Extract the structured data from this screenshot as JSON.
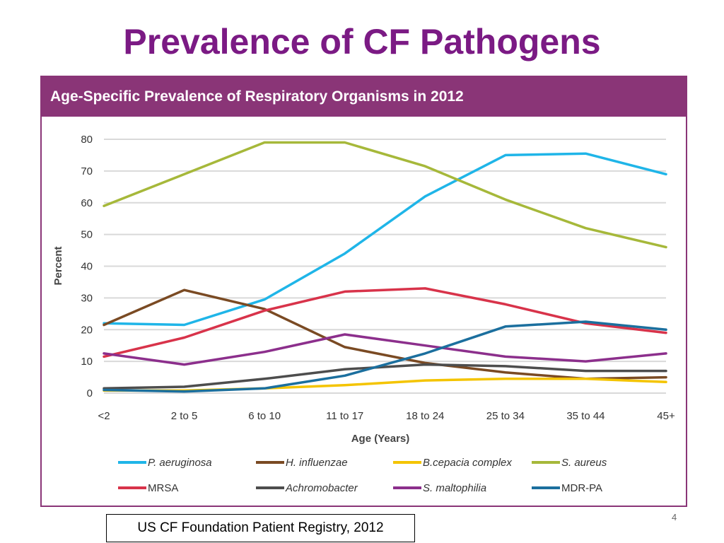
{
  "slide": {
    "title": "Prevalence of CF Pathogens",
    "source": "US CF Foundation Patient Registry, 2012",
    "page_number": "4"
  },
  "colors": {
    "title": "#7b1a84",
    "header_bg": "#8a3577",
    "panel_border": "#8a3577",
    "grid": "#d9d9d9"
  },
  "chart_data": {
    "type": "line",
    "title": "Age-Specific Prevalence of Respiratory Organisms in 2012",
    "xlabel": "Age (Years)",
    "ylabel": "Percent",
    "ylim": [
      0,
      80
    ],
    "yticks": [
      0,
      10,
      20,
      30,
      40,
      50,
      60,
      70,
      80
    ],
    "grid": true,
    "legend_position": "bottom",
    "categories": [
      "<2",
      "2 to 5",
      "6 to 10",
      "11 to 17",
      "18 to 24",
      "25 to 34",
      "35 to 44",
      "45+"
    ],
    "series": [
      {
        "name": "P. aeruginosa",
        "color": "#1fb5e8",
        "values": [
          22,
          21.5,
          29.5,
          44,
          62,
          75,
          75.5,
          69
        ]
      },
      {
        "name": "H. influenzae",
        "color": "#7a4a23",
        "values": [
          21.5,
          32.5,
          26.5,
          14.5,
          9.5,
          6.5,
          4.5,
          5
        ]
      },
      {
        "name": "B.cepacia complex",
        "color": "#f4c400",
        "values": [
          0.8,
          0.8,
          1.5,
          2.5,
          4,
          4.5,
          4.5,
          3.5
        ]
      },
      {
        "name": "S. aureus",
        "color": "#a6b83a",
        "values": [
          59,
          69,
          79,
          79,
          71.5,
          61,
          52,
          46
        ]
      },
      {
        "name": "MRSA",
        "color": "#d8334a",
        "values": [
          11.5,
          17.5,
          26,
          32,
          33,
          28,
          22,
          19
        ]
      },
      {
        "name": "Achromobacter",
        "color": "#4d4d4d",
        "values": [
          1.5,
          2,
          4.5,
          7.5,
          9,
          8.5,
          7,
          7
        ]
      },
      {
        "name": "S. maltophilia",
        "color": "#8c2f8c",
        "values": [
          12.5,
          9,
          13,
          18.5,
          15,
          11.5,
          10,
          12.5
        ]
      },
      {
        "name": "MDR-PA",
        "color": "#1b6f9e",
        "values": [
          1,
          0.5,
          1.5,
          5.5,
          12.5,
          21,
          22.5,
          20
        ]
      }
    ]
  }
}
